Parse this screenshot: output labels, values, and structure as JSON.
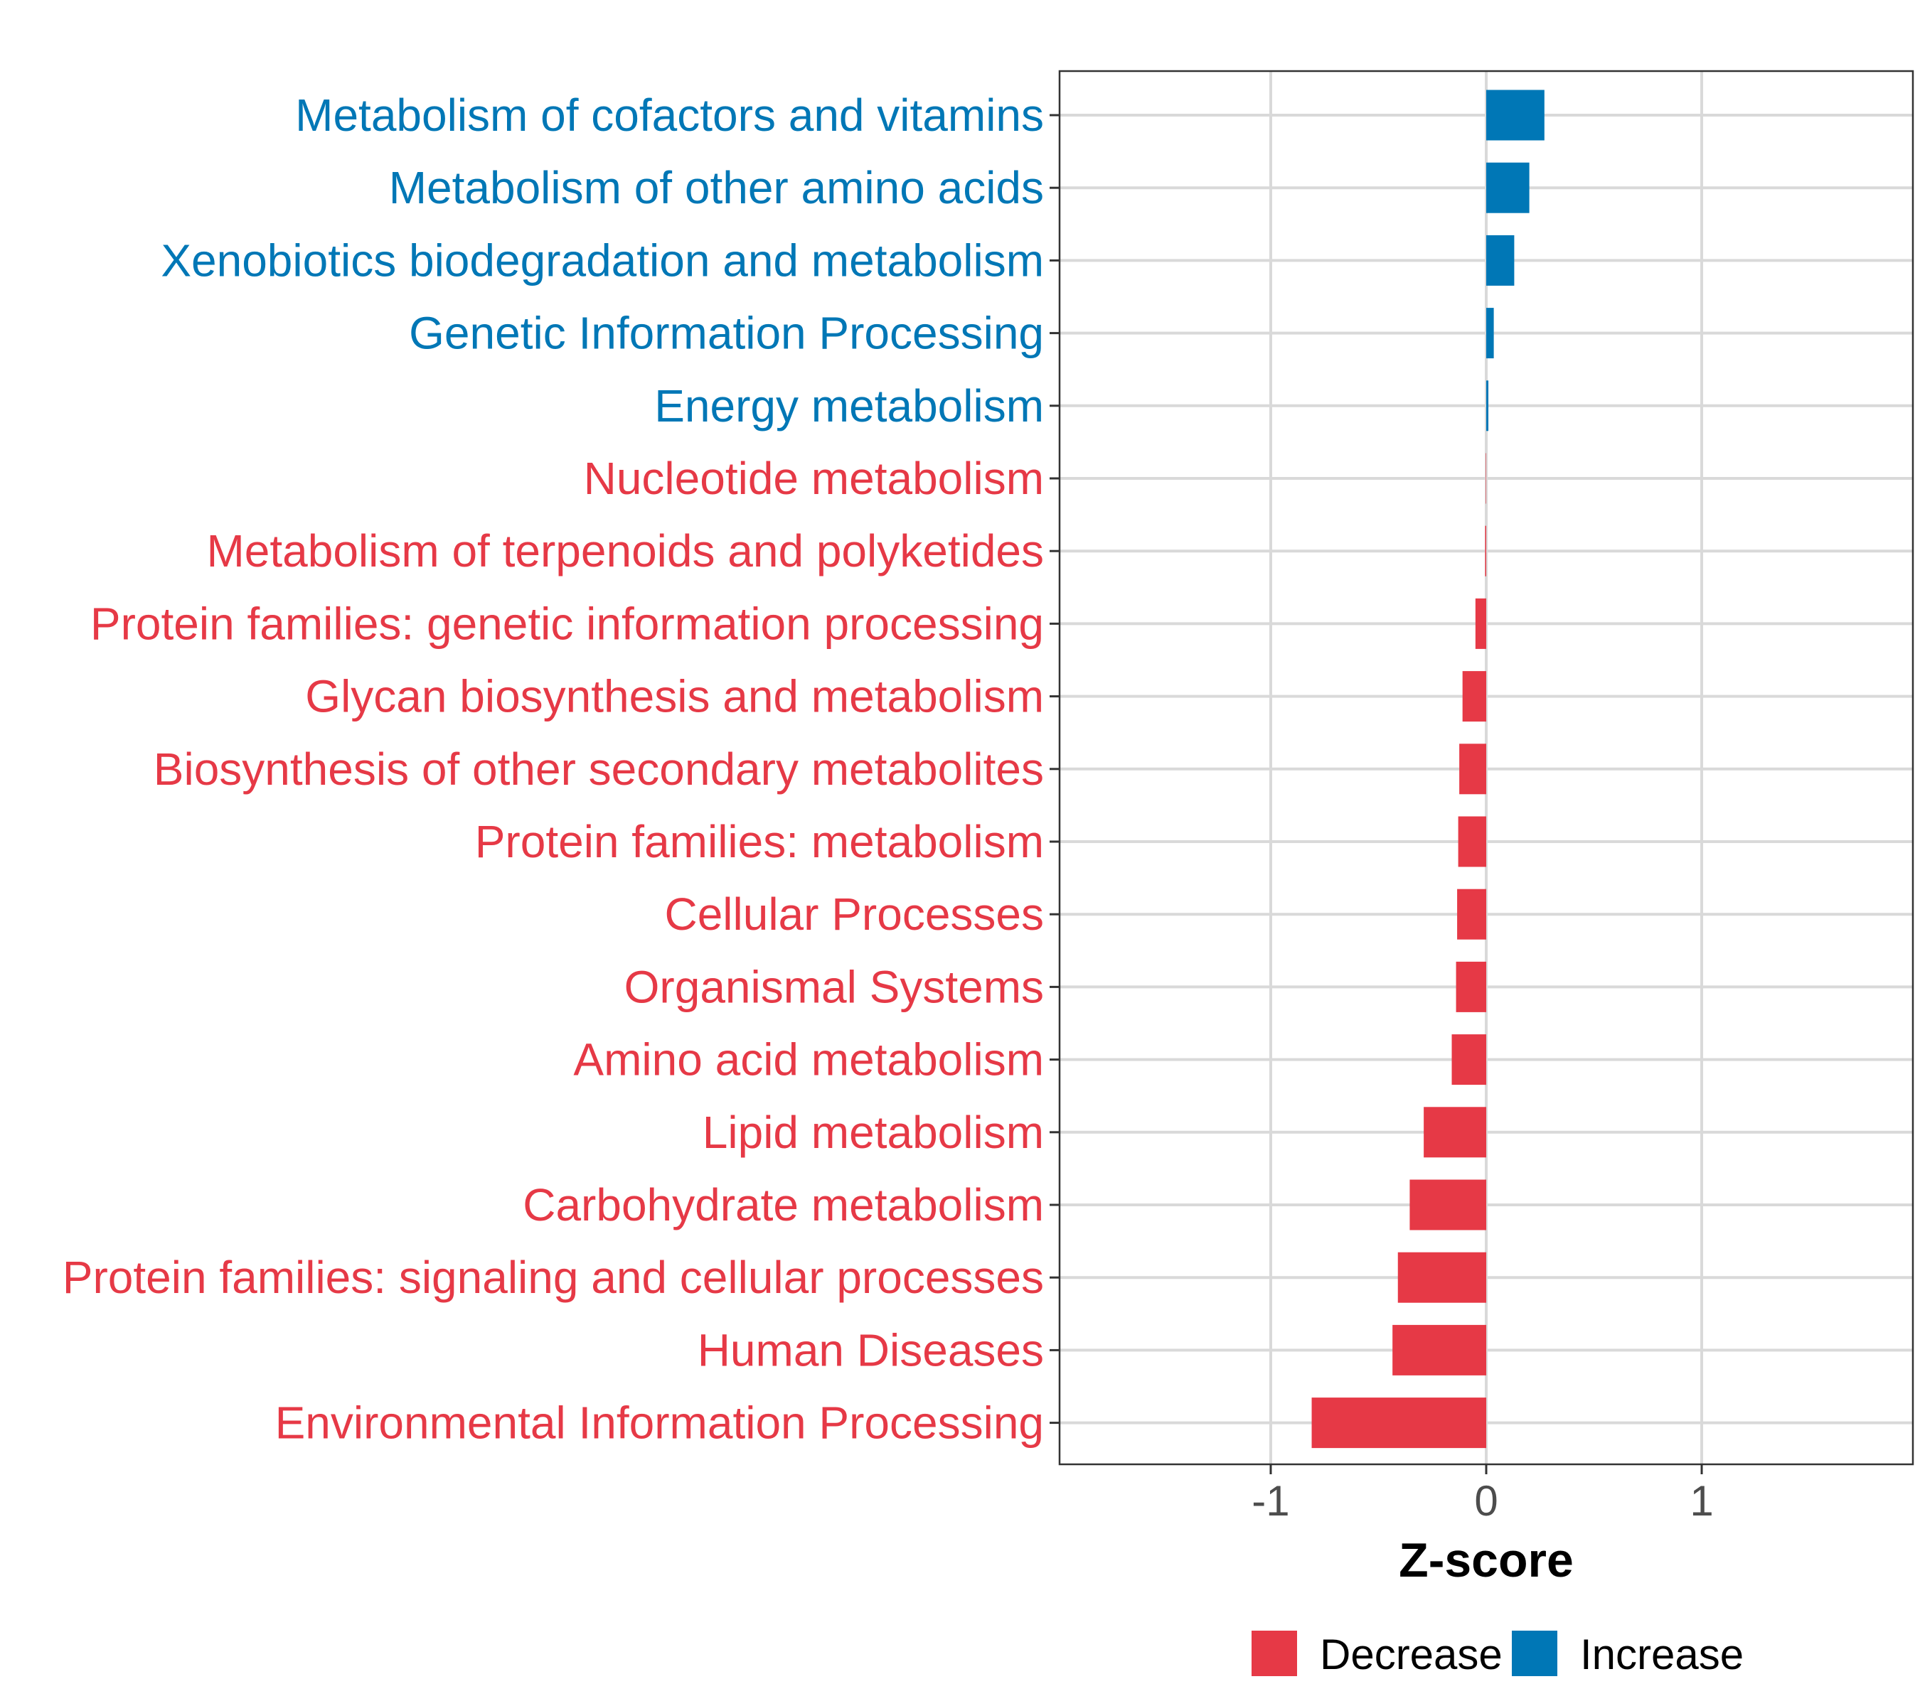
{
  "chart_data": {
    "type": "bar",
    "orientation": "horizontal",
    "title": "",
    "xlabel": "Z-score",
    "ylabel": "",
    "xlim": [
      -1.98,
      1.98
    ],
    "xticks": [
      -1,
      0,
      1
    ],
    "xtick_labels": [
      "-1",
      "0",
      "1"
    ],
    "grid": true,
    "legend_position": "bottom",
    "colors": {
      "Decrease": "#E63946",
      "Increase": "#0077B6"
    },
    "legend": [
      {
        "key": "Decrease",
        "label": "Decrease"
      },
      {
        "key": "Increase",
        "label": "Increase"
      }
    ],
    "categories": [
      "Metabolism of cofactors and vitamins",
      "Metabolism of other amino acids",
      "Xenobiotics biodegradation and metabolism",
      "Genetic Information Processing",
      "Energy metabolism",
      "Nucleotide metabolism",
      "Metabolism of terpenoids and polyketides",
      "Protein families: genetic information processing",
      "Glycan biosynthesis and metabolism",
      "Biosynthesis of other secondary metabolites",
      "Protein families: metabolism",
      "Cellular Processes",
      "Organismal Systems",
      "Amino acid metabolism",
      "Lipid metabolism",
      "Carbohydrate metabolism",
      "Protein families: signaling and cellular processes",
      "Human Diseases",
      "Environmental Information Processing"
    ],
    "values": [
      0.27,
      0.2,
      0.13,
      0.035,
      0.01,
      -0.002,
      -0.005,
      -0.05,
      -0.11,
      -0.125,
      -0.13,
      -0.135,
      -0.14,
      -0.16,
      -0.29,
      -0.355,
      -0.41,
      -0.435,
      -0.81
    ],
    "groups": [
      "Increase",
      "Increase",
      "Increase",
      "Increase",
      "Increase",
      "Decrease",
      "Decrease",
      "Decrease",
      "Decrease",
      "Decrease",
      "Decrease",
      "Decrease",
      "Decrease",
      "Decrease",
      "Decrease",
      "Decrease",
      "Decrease",
      "Decrease",
      "Decrease"
    ]
  }
}
